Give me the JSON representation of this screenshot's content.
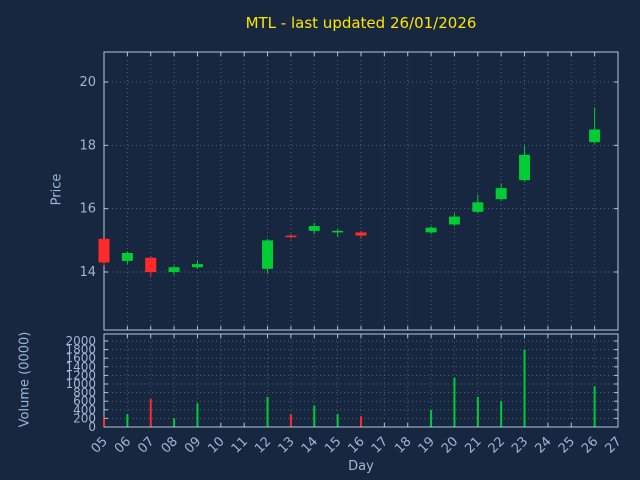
{
  "title": "MTL - last updated 26/01/2026",
  "colors": {
    "background": "#16273f",
    "up": "#00cc33",
    "down": "#ff2a2a",
    "grid": "#4e6280",
    "border": "#b5c4d8",
    "text": "#9fb6d4",
    "title": "#ffe500"
  },
  "chart_data": {
    "type": "candlestick",
    "title": "MTL - last updated 26/01/2026",
    "xlabel": "Day",
    "ylabel": "Price",
    "ylabel2": "Volume (0000)",
    "x_ticks": [
      "05",
      "06",
      "07",
      "08",
      "09",
      "10",
      "11",
      "12",
      "13",
      "14",
      "15",
      "16",
      "17",
      "18",
      "19",
      "20",
      "21",
      "22",
      "23",
      "24",
      "25",
      "26",
      "27"
    ],
    "price_ticks": [
      14,
      16,
      18,
      20
    ],
    "volume_ticks": [
      0,
      200,
      400,
      600,
      800,
      1000,
      1200,
      1400,
      1600,
      1800,
      2000
    ],
    "price_axis_range": [
      12.2,
      21.0
    ],
    "volume_axis_range": [
      0,
      2200
    ],
    "legend": "none",
    "grid": "dotted",
    "candles": [
      {
        "day": 5,
        "open": 15.05,
        "high": 15.05,
        "low": 14.2,
        "close": 14.3,
        "volume": 200
      },
      {
        "day": 6,
        "open": 14.35,
        "high": 14.65,
        "low": 14.25,
        "close": 14.6,
        "volume": 300
      },
      {
        "day": 7,
        "open": 14.45,
        "high": 14.5,
        "low": 13.85,
        "close": 14.0,
        "volume": 650
      },
      {
        "day": 8,
        "open": 14.0,
        "high": 14.2,
        "low": 13.9,
        "close": 14.15,
        "volume": 200
      },
      {
        "day": 9,
        "open": 14.15,
        "high": 14.35,
        "low": 14.1,
        "close": 14.25,
        "volume": 550
      },
      {
        "day": 12,
        "open": 14.1,
        "high": 15.05,
        "low": 13.95,
        "close": 15.0,
        "volume": 700
      },
      {
        "day": 13,
        "open": 15.15,
        "high": 15.2,
        "low": 15.05,
        "close": 15.1,
        "volume": 300
      },
      {
        "day": 14,
        "open": 15.3,
        "high": 15.55,
        "low": 15.2,
        "close": 15.45,
        "volume": 500
      },
      {
        "day": 15,
        "open": 15.25,
        "high": 15.35,
        "low": 15.1,
        "close": 15.3,
        "volume": 300
      },
      {
        "day": 16,
        "open": 15.25,
        "high": 15.3,
        "low": 15.05,
        "close": 15.15,
        "volume": 250
      },
      {
        "day": 19,
        "open": 15.25,
        "high": 15.45,
        "low": 15.2,
        "close": 15.4,
        "volume": 400
      },
      {
        "day": 20,
        "open": 15.5,
        "high": 15.85,
        "low": 15.45,
        "close": 15.75,
        "volume": 1150
      },
      {
        "day": 21,
        "open": 15.9,
        "high": 16.45,
        "low": 15.85,
        "close": 16.2,
        "volume": 700
      },
      {
        "day": 22,
        "open": 16.3,
        "high": 16.8,
        "low": 16.25,
        "close": 16.65,
        "volume": 600
      },
      {
        "day": 23,
        "open": 16.9,
        "high": 18.0,
        "low": 16.85,
        "close": 17.7,
        "volume": 1800
      },
      {
        "day": 26,
        "open": 18.1,
        "high": 19.2,
        "low": 18.05,
        "close": 18.5,
        "volume": 950
      }
    ]
  }
}
